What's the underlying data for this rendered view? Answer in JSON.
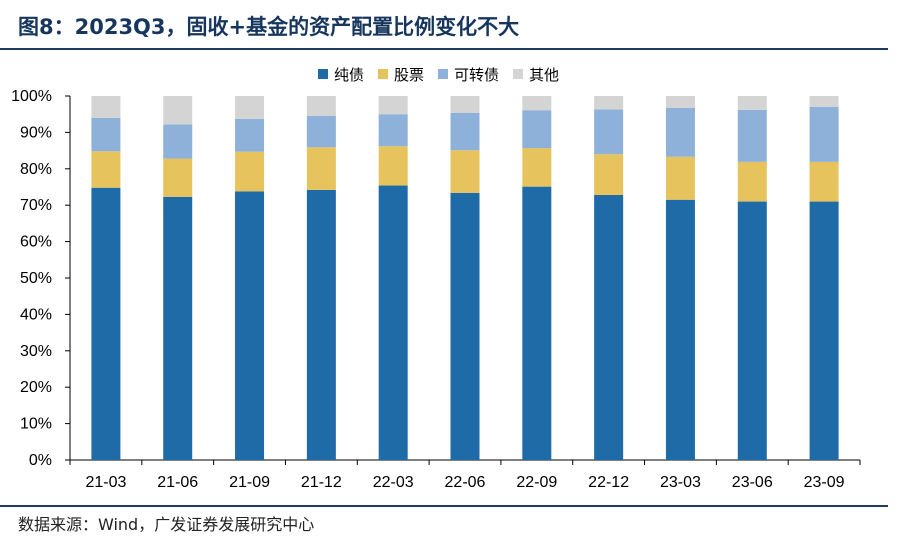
{
  "header": {
    "title": "图8：2023Q3，固收+基金的资产配置比例变化不大"
  },
  "footer": {
    "source": "数据来源：Wind，广发证券发展研究中心"
  },
  "chart_data": {
    "type": "bar",
    "stacked": true,
    "categories": [
      "21-03",
      "21-06",
      "21-09",
      "21-12",
      "22-03",
      "22-06",
      "22-09",
      "22-12",
      "23-03",
      "23-06",
      "23-09"
    ],
    "series": [
      {
        "name": "纯债",
        "color": "#1f6ba8",
        "values": [
          74.8,
          72.3,
          73.8,
          74.2,
          75.4,
          73.4,
          75.1,
          72.8,
          71.5,
          71.0,
          71.0
        ]
      },
      {
        "name": "股票",
        "color": "#e6c35c",
        "values": [
          10.0,
          10.5,
          10.9,
          11.7,
          10.8,
          11.7,
          10.6,
          11.2,
          11.8,
          10.9,
          10.9
        ]
      },
      {
        "name": "可转债",
        "color": "#8db1d8",
        "values": [
          9.2,
          9.4,
          9.0,
          8.6,
          8.8,
          10.3,
          10.4,
          12.3,
          13.4,
          14.3,
          15.1
        ]
      },
      {
        "name": "其他",
        "color": "#d4d4d4",
        "values": [
          6.0,
          7.8,
          6.3,
          5.5,
          5.0,
          4.6,
          3.9,
          3.7,
          3.3,
          3.8,
          3.0
        ]
      }
    ],
    "ylim": [
      0,
      100
    ],
    "yticks": [
      "0%",
      "10%",
      "20%",
      "30%",
      "40%",
      "50%",
      "60%",
      "70%",
      "80%",
      "90%",
      "100%"
    ],
    "xlabel": "",
    "ylabel": "",
    "grid": false,
    "legend_position": "top-center"
  }
}
